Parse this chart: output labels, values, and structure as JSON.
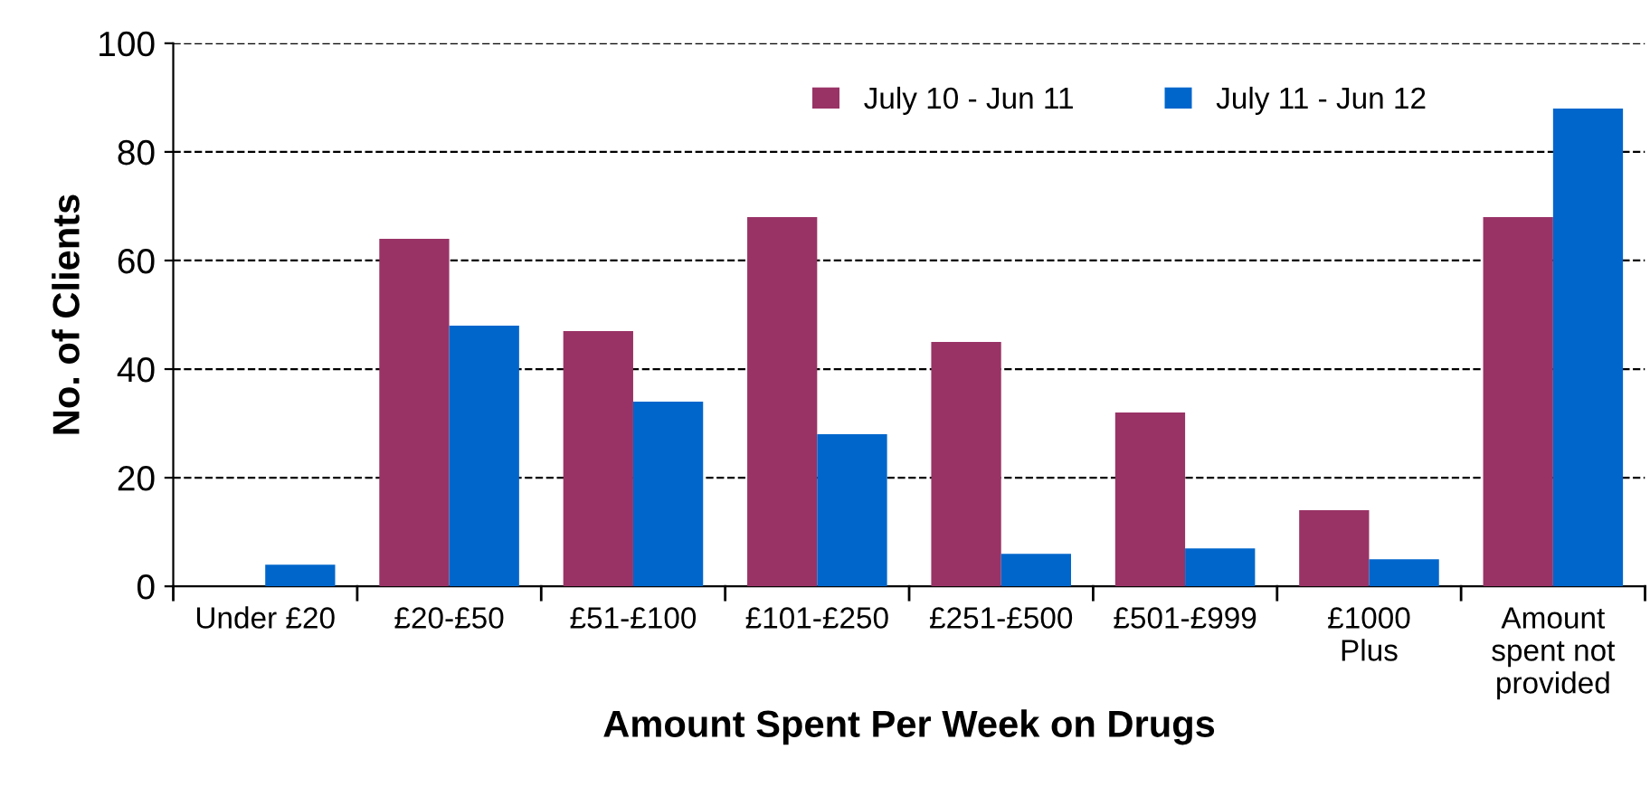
{
  "chart_data": {
    "type": "bar",
    "xlabel": "Amount Spent Per Week on Drugs",
    "ylabel": "No. of Clients",
    "categories": [
      "Under £20",
      "£20-£50",
      "£51-£100",
      "£101-£250",
      "£251-£500",
      "£501-£999",
      "£1000\nPlus",
      "Amount\nspent not\nprovided"
    ],
    "series": [
      {
        "name": "July 10 - Jun 11",
        "color": "#993366",
        "values": [
          0,
          64,
          47,
          68,
          45,
          32,
          14,
          68
        ]
      },
      {
        "name": "July 11 - Jun 12",
        "color": "#0066cc",
        "values": [
          4,
          48,
          34,
          28,
          6,
          7,
          5,
          88
        ]
      }
    ],
    "ylim": [
      0,
      100
    ],
    "yticks": [
      0,
      20,
      40,
      60,
      80,
      100
    ],
    "grid": "y",
    "legend": "top right"
  }
}
